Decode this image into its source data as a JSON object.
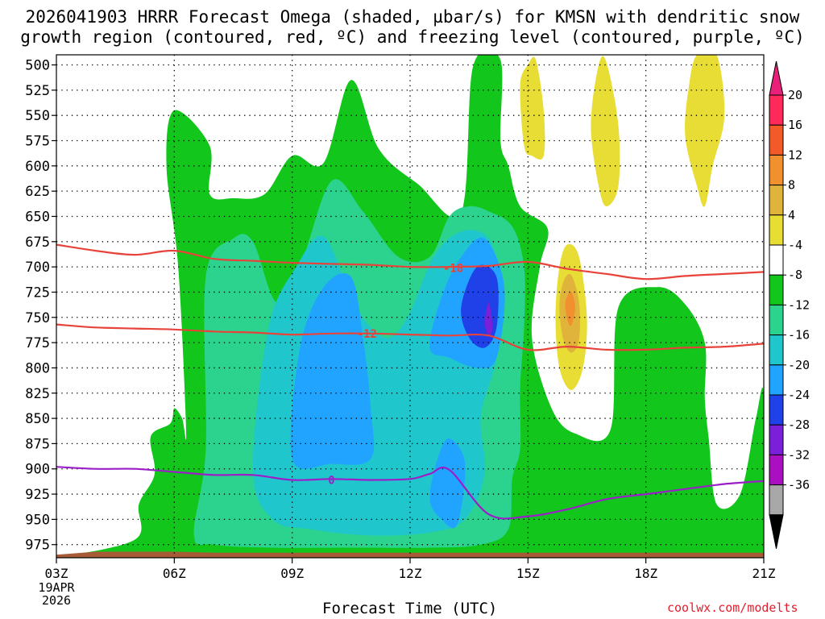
{
  "title": {
    "line1": "2026041903 HRRR Forecast Omega (shaded, µbar/s) for KMSN with dendritic snow",
    "line2": "growth region (contoured, red, ºC) and freezing level (contoured, purple, ºC)"
  },
  "credit": "coolwx.com/modelts",
  "chart_data": {
    "type": "heatmap",
    "xlabel": "Forecast Time (UTC)",
    "ylabel": "",
    "x_ticks": [
      "03Z",
      "06Z",
      "09Z",
      "12Z",
      "15Z",
      "18Z",
      "21Z"
    ],
    "x_tick_hours": [
      3,
      6,
      9,
      12,
      15,
      18,
      21
    ],
    "x_start_date": [
      "19APR",
      "2026"
    ],
    "xlim": [
      3,
      21
    ],
    "y_ticks": [
      500,
      525,
      550,
      575,
      600,
      625,
      650,
      675,
      700,
      725,
      750,
      775,
      800,
      825,
      850,
      875,
      900,
      925,
      950,
      975
    ],
    "ylim": [
      490,
      988
    ],
    "y_scale": "pressure, increasing downward",
    "grid": true,
    "shading": {
      "variable": "Omega",
      "units": "µbar/s",
      "colorbar_labels": [
        "20",
        "16",
        "12",
        "8",
        "4",
        "-4",
        "-8",
        "-12",
        "-16",
        "-20",
        "-24",
        "-28",
        "-32",
        "-36"
      ],
      "colorbar_levels": [
        20,
        16,
        12,
        8,
        4,
        -4,
        -8,
        -12,
        -16,
        -20,
        -24,
        -28,
        -32,
        -36
      ],
      "colors": [
        "#ff2a5a",
        "#f25a2a",
        "#f0902e",
        "#e0b33a",
        "#e8dd35",
        "#ffffff",
        "#12c61b",
        "#2bd38e",
        "#1fc7cc",
        "#21a4ff",
        "#2040e8",
        "#7a20d8",
        "#aa10c0",
        "#a8a8a8"
      ],
      "colorbar_cap_top": "#e8207a",
      "colorbar_cap_bottom": "#000000",
      "regions": [
        {
          "level": -4,
          "color": "#12c61b",
          "points": [
            [
              5.0,
              970
            ],
            [
              5.1,
              935
            ],
            [
              5.5,
              905
            ],
            [
              5.4,
              868
            ],
            [
              5.9,
              855
            ],
            [
              6.0,
              840
            ],
            [
              6.2,
              850
            ],
            [
              6.3,
              862
            ],
            [
              6.1,
              700
            ],
            [
              5.8,
              600
            ],
            [
              6.0,
              545
            ],
            [
              6.9,
              580
            ],
            [
              6.9,
              628
            ],
            [
              7.5,
              632
            ],
            [
              8.3,
              628
            ],
            [
              9.0,
              590
            ],
            [
              9.8,
              597
            ],
            [
              10.5,
              515
            ],
            [
              11.2,
              583
            ],
            [
              12.2,
              618
            ],
            [
              13.3,
              646
            ],
            [
              13.6,
              502
            ],
            [
              14.3,
              495
            ],
            [
              14.3,
              575
            ],
            [
              14.5,
              600
            ],
            [
              14.8,
              640
            ],
            [
              15.5,
              662
            ],
            [
              15.3,
              700
            ],
            [
              15.1,
              770
            ],
            [
              15.6,
              840
            ],
            [
              16.2,
              865
            ],
            [
              17.1,
              861
            ],
            [
              17.3,
              740
            ],
            [
              18.3,
              720
            ],
            [
              19.0,
              737
            ],
            [
              19.5,
              775
            ],
            [
              19.5,
              830
            ],
            [
              19.6,
              870
            ],
            [
              19.8,
              935
            ],
            [
              20.4,
              925
            ],
            [
              20.8,
              850
            ],
            [
              21.0,
              828
            ],
            [
              21.0,
              988
            ],
            [
              3.0,
              988
            ],
            [
              3.0,
              988
            ]
          ]
        },
        {
          "level": -8,
          "color": "#2bd38e",
          "points": [
            [
              6.5,
              965
            ],
            [
              6.8,
              880
            ],
            [
              6.8,
              710
            ],
            [
              7.5,
              672
            ],
            [
              8.0,
              675
            ],
            [
              8.6,
              735
            ],
            [
              9.2,
              700
            ],
            [
              10.0,
              615
            ],
            [
              10.8,
              645
            ],
            [
              11.7,
              690
            ],
            [
              12.5,
              690
            ],
            [
              13.0,
              650
            ],
            [
              13.5,
              640
            ],
            [
              14.0,
              645
            ],
            [
              14.6,
              660
            ],
            [
              14.9,
              700
            ],
            [
              14.9,
              760
            ],
            [
              14.8,
              820
            ],
            [
              14.8,
              880
            ],
            [
              14.6,
              910
            ],
            [
              14.5,
              960
            ],
            [
              13.8,
              975
            ],
            [
              12.5,
              978
            ],
            [
              10.5,
              978
            ],
            [
              8.5,
              978
            ],
            [
              7.0,
              975
            ]
          ]
        },
        {
          "level": -12,
          "color": "#1fc7cc",
          "points": [
            [
              8.0,
              900
            ],
            [
              8.4,
              760
            ],
            [
              9.1,
              700
            ],
            [
              9.8,
              670
            ],
            [
              10.5,
              730
            ],
            [
              11.0,
              760
            ],
            [
              11.5,
              770
            ],
            [
              12.0,
              745
            ],
            [
              12.6,
              690
            ],
            [
              13.3,
              665
            ],
            [
              14.0,
              672
            ],
            [
              14.3,
              720
            ],
            [
              14.2,
              790
            ],
            [
              13.8,
              848
            ],
            [
              13.9,
              905
            ],
            [
              13.4,
              950
            ],
            [
              12.5,
              963
            ],
            [
              11.0,
              966
            ],
            [
              9.5,
              960
            ],
            [
              8.5,
              950
            ]
          ]
        },
        {
          "level": -16,
          "color": "#21a4ff",
          "points": [
            [
              9.0,
              890
            ],
            [
              9.2,
              780
            ],
            [
              9.8,
              720
            ],
            [
              10.5,
              710
            ],
            [
              10.8,
              770
            ],
            [
              11.0,
              840
            ],
            [
              11.0,
              890
            ],
            [
              10.0,
              895
            ]
          ]
        },
        {
          "level": -16,
          "color": "#21a4ff",
          "points": [
            [
              12.5,
              780
            ],
            [
              12.8,
              730
            ],
            [
              13.3,
              690
            ],
            [
              13.9,
              672
            ],
            [
              14.4,
              720
            ],
            [
              14.2,
              790
            ],
            [
              13.7,
              800
            ],
            [
              13.0,
              790
            ]
          ]
        },
        {
          "level": -16,
          "color": "#21a4ff",
          "points": [
            [
              12.5,
              930
            ],
            [
              12.7,
              890
            ],
            [
              13.0,
              870
            ],
            [
              13.4,
              895
            ],
            [
              13.2,
              955
            ],
            [
              12.8,
              950
            ]
          ]
        },
        {
          "level": -20,
          "color": "#2040e8",
          "points": [
            [
              13.3,
              740
            ],
            [
              13.7,
              700
            ],
            [
              14.2,
              710
            ],
            [
              14.2,
              760
            ],
            [
              13.9,
              780
            ],
            [
              13.5,
              770
            ]
          ]
        },
        {
          "level": -16,
          "color": "#21a4ff",
          "points": [
            [
              9.8,
              825
            ],
            [
              10.0,
              798
            ],
            [
              10.3,
              830
            ],
            [
              10.0,
              875
            ],
            [
              9.8,
              858
            ]
          ]
        },
        {
          "level": -24,
          "color": "#7a20d8",
          "points": [
            [
              13.9,
              755
            ],
            [
              14.0,
              735
            ],
            [
              14.1,
              760
            ],
            [
              14.0,
              768
            ]
          ]
        },
        {
          "level": 4,
          "color": "#e8dd35",
          "points": [
            [
              14.9,
              580
            ],
            [
              14.8,
              520
            ],
            [
              15.0,
              500
            ],
            [
              15.2,
              495
            ],
            [
              15.4,
              545
            ],
            [
              15.4,
              590
            ],
            [
              15.1,
              590
            ]
          ]
        },
        {
          "level": 4,
          "color": "#e8dd35",
          "points": [
            [
              16.8,
              620
            ],
            [
              16.6,
              560
            ],
            [
              16.8,
              500
            ],
            [
              17.0,
              498
            ],
            [
              17.3,
              560
            ],
            [
              17.3,
              620
            ],
            [
              17.0,
              640
            ]
          ]
        },
        {
          "level": 4,
          "color": "#e8dd35",
          "points": [
            [
              19.3,
              620
            ],
            [
              19.0,
              570
            ],
            [
              19.1,
              520
            ],
            [
              19.3,
              490
            ],
            [
              19.8,
              490
            ],
            [
              20.0,
              550
            ],
            [
              19.7,
              600
            ],
            [
              19.5,
              640
            ]
          ]
        },
        {
          "level": 4,
          "color": "#e8dd35",
          "points": [
            [
              15.8,
              800
            ],
            [
              15.7,
              750
            ],
            [
              15.8,
              700
            ],
            [
              16.0,
              678
            ],
            [
              16.3,
              690
            ],
            [
              16.5,
              750
            ],
            [
              16.4,
              800
            ],
            [
              16.1,
              822
            ]
          ]
        },
        {
          "level": 8,
          "color": "#e0b33a",
          "points": [
            [
              15.9,
              772
            ],
            [
              15.8,
              740
            ],
            [
              15.9,
              715
            ],
            [
              16.1,
              708
            ],
            [
              16.3,
              735
            ],
            [
              16.3,
              772
            ],
            [
              16.1,
              785
            ]
          ]
        },
        {
          "level": 12,
          "color": "#f0902e",
          "points": [
            [
              16.0,
              752
            ],
            [
              15.95,
              735
            ],
            [
              16.1,
              725
            ],
            [
              16.2,
              740
            ],
            [
              16.1,
              758
            ]
          ]
        }
      ]
    },
    "contours": [
      {
        "name": "dendritic snow growth region",
        "color": "#e8433b",
        "value_label": "-18",
        "label_position": [
          13.1,
          701
        ],
        "points": [
          [
            3.0,
            678
          ],
          [
            4.0,
            684
          ],
          [
            5.0,
            688
          ],
          [
            6.0,
            684
          ],
          [
            7.0,
            692
          ],
          [
            8.0,
            694
          ],
          [
            9.0,
            696
          ],
          [
            10.0,
            697
          ],
          [
            11.0,
            698
          ],
          [
            12.0,
            700
          ],
          [
            13.0,
            700
          ],
          [
            14.0,
            699
          ],
          [
            15.0,
            695
          ],
          [
            16.0,
            702
          ],
          [
            17.0,
            707
          ],
          [
            18.0,
            712
          ],
          [
            19.0,
            709
          ],
          [
            20.0,
            707
          ],
          [
            21.0,
            705
          ]
        ]
      },
      {
        "name": "dendritic snow growth region",
        "color": "#e8433b",
        "value_label": "-12",
        "label_position": [
          10.9,
          766
        ],
        "points": [
          [
            3.0,
            757
          ],
          [
            4.0,
            760
          ],
          [
            5.0,
            761
          ],
          [
            6.0,
            762
          ],
          [
            7.0,
            764
          ],
          [
            8.0,
            765
          ],
          [
            9.0,
            767
          ],
          [
            10.0,
            766
          ],
          [
            11.0,
            766
          ],
          [
            12.0,
            767
          ],
          [
            13.0,
            768
          ],
          [
            14.0,
            768
          ],
          [
            15.0,
            782
          ],
          [
            16.0,
            779
          ],
          [
            17.0,
            782
          ],
          [
            18.0,
            782
          ],
          [
            19.0,
            780
          ],
          [
            20.0,
            779
          ],
          [
            21.0,
            776
          ]
        ]
      },
      {
        "name": "freezing level",
        "color": "#9c1ec8",
        "value_label": "0",
        "label_position": [
          10.0,
          911
        ],
        "points": [
          [
            3.0,
            898
          ],
          [
            4.0,
            900
          ],
          [
            5.0,
            900
          ],
          [
            6.0,
            903
          ],
          [
            7.0,
            906
          ],
          [
            8.0,
            906
          ],
          [
            9.0,
            911
          ],
          [
            10.0,
            910
          ],
          [
            11.0,
            911
          ],
          [
            12.0,
            910
          ],
          [
            12.5,
            905
          ],
          [
            13.0,
            901
          ],
          [
            14.0,
            945
          ],
          [
            15.0,
            947
          ],
          [
            16.0,
            940
          ],
          [
            17.0,
            930
          ],
          [
            18.0,
            925
          ],
          [
            19.0,
            920
          ],
          [
            20.0,
            915
          ],
          [
            21.0,
            912
          ]
        ]
      }
    ],
    "ground": {
      "color": "#a65a36",
      "points": [
        [
          3.0,
          985
        ],
        [
          4.0,
          982
        ],
        [
          5.0,
          982
        ],
        [
          6.0,
          982
        ],
        [
          7.0,
          983
        ],
        [
          8.0,
          983
        ],
        [
          9.0,
          983
        ],
        [
          10.0,
          983
        ],
        [
          11.0,
          983
        ],
        [
          12.0,
          983
        ],
        [
          13.0,
          983
        ],
        [
          14.0,
          983
        ],
        [
          15.0,
          983
        ],
        [
          16.0,
          983
        ],
        [
          17.0,
          983
        ],
        [
          18.0,
          983
        ],
        [
          19.0,
          983
        ],
        [
          20.0,
          983
        ],
        [
          21.0,
          983
        ]
      ]
    }
  }
}
